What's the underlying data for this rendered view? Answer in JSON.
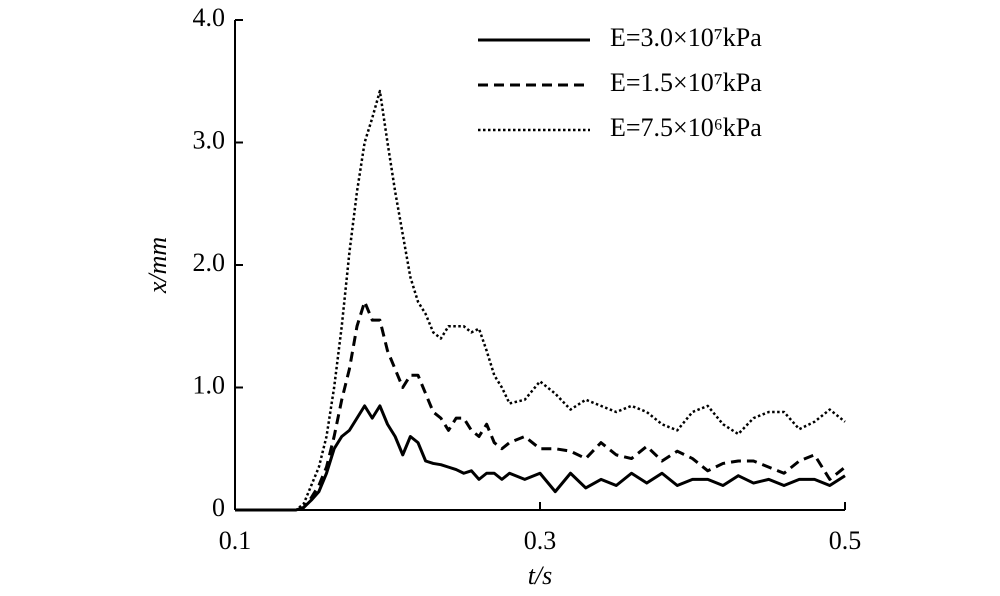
{
  "chart_data": {
    "type": "line",
    "xlabel": "t/s",
    "ylabel": "x/mm",
    "xlim": [
      0.1,
      0.5
    ],
    "ylim": [
      0,
      4
    ],
    "xticks": [
      0.1,
      0.3,
      0.5
    ],
    "yticks": [
      0,
      {
        "value": 1,
        "label": "1.0"
      },
      {
        "value": 2,
        "label": "2.0"
      },
      {
        "value": 3,
        "label": "3.0"
      },
      {
        "value": 4,
        "label": "4.0"
      }
    ],
    "legend": "upper right",
    "x": [
      0.1,
      0.11,
      0.12,
      0.13,
      0.14,
      0.145,
      0.15,
      0.155,
      0.16,
      0.165,
      0.17,
      0.175,
      0.18,
      0.185,
      0.19,
      0.195,
      0.2,
      0.205,
      0.21,
      0.215,
      0.22,
      0.225,
      0.23,
      0.235,
      0.24,
      0.245,
      0.25,
      0.255,
      0.26,
      0.265,
      0.27,
      0.275,
      0.28,
      0.29,
      0.3,
      0.31,
      0.32,
      0.33,
      0.34,
      0.35,
      0.36,
      0.37,
      0.38,
      0.39,
      0.4,
      0.41,
      0.42,
      0.43,
      0.44,
      0.45,
      0.46,
      0.47,
      0.48,
      0.49,
      0.5
    ],
    "series": [
      {
        "name": "E=3.0×10⁷kPa",
        "color": "#000000",
        "style": "solid",
        "values": [
          0,
          0,
          0,
          0,
          0,
          0.02,
          0.08,
          0.15,
          0.3,
          0.5,
          0.6,
          0.65,
          0.75,
          0.85,
          0.75,
          0.85,
          0.7,
          0.6,
          0.45,
          0.6,
          0.55,
          0.4,
          0.38,
          0.37,
          0.35,
          0.33,
          0.3,
          0.32,
          0.25,
          0.3,
          0.3,
          0.25,
          0.3,
          0.25,
          0.3,
          0.15,
          0.3,
          0.18,
          0.25,
          0.2,
          0.3,
          0.22,
          0.3,
          0.2,
          0.25,
          0.25,
          0.2,
          0.28,
          0.22,
          0.25,
          0.2,
          0.25,
          0.25,
          0.2,
          0.28
        ]
      },
      {
        "name": "E=1.5×10⁷kPa",
        "color": "#000000",
        "style": "dashed",
        "values": [
          0,
          0,
          0,
          0,
          0,
          0.02,
          0.1,
          0.2,
          0.35,
          0.6,
          0.9,
          1.15,
          1.5,
          1.7,
          1.55,
          1.55,
          1.3,
          1.15,
          1.0,
          1.1,
          1.1,
          0.95,
          0.8,
          0.75,
          0.65,
          0.75,
          0.75,
          0.65,
          0.6,
          0.7,
          0.55,
          0.5,
          0.55,
          0.6,
          0.5,
          0.5,
          0.48,
          0.42,
          0.55,
          0.45,
          0.42,
          0.52,
          0.4,
          0.48,
          0.42,
          0.32,
          0.38,
          0.4,
          0.4,
          0.35,
          0.3,
          0.4,
          0.45,
          0.25,
          0.35
        ]
      },
      {
        "name": "E=7.5×10⁶kPa",
        "color": "#000000",
        "style": "dotted",
        "values": [
          0,
          0,
          0,
          0,
          0,
          0.05,
          0.2,
          0.35,
          0.6,
          1.0,
          1.5,
          2.1,
          2.6,
          3.0,
          3.2,
          3.42,
          3.0,
          2.6,
          2.25,
          1.9,
          1.7,
          1.6,
          1.45,
          1.4,
          1.5,
          1.5,
          1.5,
          1.45,
          1.48,
          1.3,
          1.1,
          1.0,
          0.87,
          0.9,
          1.05,
          0.95,
          0.82,
          0.9,
          0.85,
          0.8,
          0.85,
          0.8,
          0.7,
          0.65,
          0.8,
          0.85,
          0.7,
          0.62,
          0.75,
          0.8,
          0.8,
          0.66,
          0.72,
          0.82,
          0.72
        ]
      }
    ]
  }
}
